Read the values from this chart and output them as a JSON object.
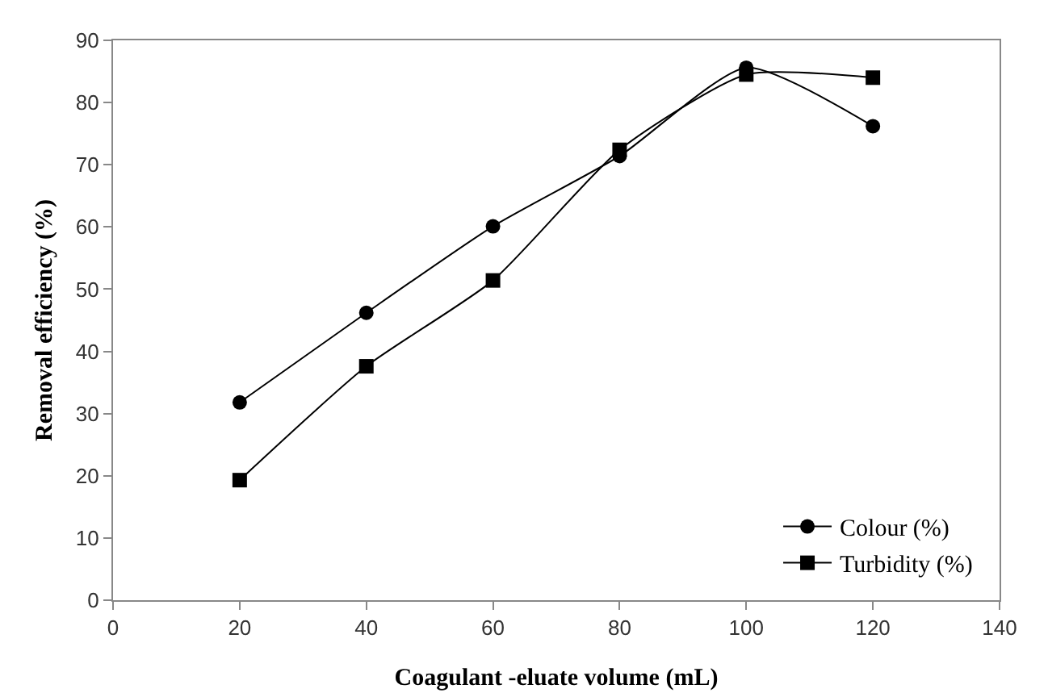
{
  "chart_data": {
    "type": "line",
    "xlabel": "Coagulant -eluate volume (mL)",
    "ylabel": "Removal efficiency (%)",
    "x": [
      20,
      40,
      60,
      80,
      100,
      120
    ],
    "series": [
      {
        "name": "Colour (%)",
        "color": "#000000",
        "marker": "circle",
        "values": [
          31.8,
          46.2,
          60.1,
          71.4,
          85.6,
          76.2
        ]
      },
      {
        "name": "Turbidity (%)",
        "color": "#000000",
        "marker": "square",
        "values": [
          19.3,
          37.6,
          51.4,
          72.4,
          84.5,
          84.0
        ]
      }
    ],
    "xlim": [
      0,
      140
    ],
    "xticks": [
      0,
      20,
      40,
      60,
      80,
      100,
      120,
      140
    ],
    "ylim": [
      0,
      90
    ],
    "yticks": [
      0,
      10,
      20,
      30,
      40,
      50,
      60,
      70,
      80,
      90
    ],
    "grid": false,
    "legend": "bottom right",
    "line_style": "solid"
  }
}
